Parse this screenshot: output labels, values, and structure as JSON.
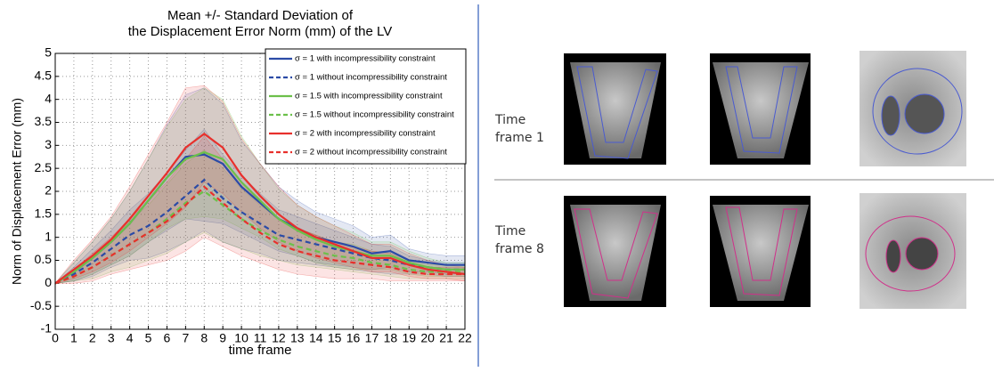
{
  "chart_data": {
    "type": "line",
    "title": [
      "Mean +/- Standard Deviation of",
      "the Displacement Error Norm (mm) of the LV"
    ],
    "x_label": "time frame",
    "y_label": "Norm of Displacement Error (mm)",
    "x": [
      0,
      1,
      2,
      3,
      4,
      5,
      6,
      7,
      8,
      9,
      10,
      11,
      12,
      13,
      14,
      15,
      16,
      17,
      18,
      19,
      20,
      21,
      22
    ],
    "xlim": [
      0,
      22
    ],
    "xticks": [
      0,
      1,
      2,
      3,
      4,
      5,
      6,
      7,
      8,
      9,
      10,
      11,
      12,
      13,
      14,
      15,
      16,
      17,
      18,
      19,
      20,
      21,
      22
    ],
    "ylim": [
      -1,
      5
    ],
    "yticks": [
      -1,
      -0.5,
      0,
      0.5,
      1,
      1.5,
      2,
      2.5,
      3,
      3.5,
      4,
      4.5,
      5
    ],
    "grid": true,
    "legend": "upper right",
    "series": [
      {
        "name": "σ = 1 with incompressibility constraint",
        "color": "#2b4ba6",
        "dashed": false,
        "values": [
          0,
          0.25,
          0.55,
          0.9,
          1.3,
          1.8,
          2.3,
          2.75,
          2.8,
          2.6,
          2.1,
          1.75,
          1.4,
          1.2,
          1.0,
          0.9,
          0.8,
          0.65,
          0.7,
          0.5,
          0.45,
          0.4,
          0.4
        ],
        "std": [
          0,
          0.2,
          0.35,
          0.5,
          0.7,
          0.9,
          1.15,
          1.35,
          1.45,
          1.3,
          1.0,
          0.85,
          0.7,
          0.6,
          0.55,
          0.5,
          0.45,
          0.35,
          0.35,
          0.25,
          0.2,
          0.2,
          0.2
        ]
      },
      {
        "name": "σ = 1 without incompressibility constraint",
        "color": "#2b4ba6",
        "dashed": true,
        "values": [
          0,
          0.2,
          0.45,
          0.75,
          1.05,
          1.25,
          1.55,
          1.9,
          2.25,
          1.85,
          1.55,
          1.3,
          1.05,
          0.95,
          0.85,
          0.75,
          0.65,
          0.55,
          0.5,
          0.4,
          0.35,
          0.3,
          0.3
        ],
        "std": [
          0,
          0.15,
          0.3,
          0.4,
          0.55,
          0.7,
          0.85,
          1.0,
          1.1,
          0.95,
          0.8,
          0.65,
          0.55,
          0.5,
          0.45,
          0.4,
          0.35,
          0.3,
          0.3,
          0.2,
          0.15,
          0.15,
          0.15
        ]
      },
      {
        "name": "σ = 1.5 with incompressibility constraint",
        "color": "#6cc04a",
        "dashed": false,
        "values": [
          0,
          0.25,
          0.55,
          0.9,
          1.3,
          1.8,
          2.3,
          2.7,
          2.85,
          2.7,
          2.2,
          1.8,
          1.4,
          1.15,
          0.95,
          0.8,
          0.7,
          0.6,
          0.6,
          0.45,
          0.35,
          0.3,
          0.3
        ],
        "std": [
          0,
          0.2,
          0.35,
          0.5,
          0.7,
          0.9,
          1.1,
          1.3,
          1.4,
          1.3,
          1.0,
          0.8,
          0.65,
          0.55,
          0.5,
          0.45,
          0.4,
          0.3,
          0.3,
          0.25,
          0.2,
          0.15,
          0.15
        ]
      },
      {
        "name": "σ = 1.5 without incompressibility constraint",
        "color": "#6cc04a",
        "dashed": true,
        "values": [
          0,
          0.15,
          0.35,
          0.6,
          0.85,
          1.1,
          1.4,
          1.75,
          2.0,
          1.7,
          1.4,
          1.15,
          0.95,
          0.8,
          0.7,
          0.6,
          0.55,
          0.45,
          0.4,
          0.3,
          0.25,
          0.25,
          0.25
        ],
        "std": [
          0,
          0.1,
          0.25,
          0.35,
          0.5,
          0.6,
          0.75,
          0.85,
          0.9,
          0.8,
          0.65,
          0.55,
          0.45,
          0.4,
          0.35,
          0.3,
          0.3,
          0.25,
          0.25,
          0.2,
          0.15,
          0.15,
          0.15
        ]
      },
      {
        "name": "σ = 2 with incompressibility constraint",
        "color": "#e8302c",
        "dashed": false,
        "values": [
          0,
          0.3,
          0.6,
          0.95,
          1.4,
          1.9,
          2.4,
          2.95,
          3.25,
          2.95,
          2.35,
          1.9,
          1.5,
          1.2,
          1.0,
          0.85,
          0.7,
          0.55,
          0.55,
          0.4,
          0.3,
          0.25,
          0.2
        ],
        "std": [
          0,
          0.2,
          0.35,
          0.5,
          0.7,
          0.9,
          1.1,
          1.3,
          1.05,
          1.0,
          0.8,
          0.7,
          0.6,
          0.5,
          0.45,
          0.4,
          0.35,
          0.3,
          0.3,
          0.25,
          0.2,
          0.15,
          0.15
        ]
      },
      {
        "name": "σ = 2 without incompressibility constraint",
        "color": "#e8302c",
        "dashed": true,
        "values": [
          0,
          0.15,
          0.35,
          0.6,
          0.85,
          1.1,
          1.35,
          1.7,
          2.1,
          1.75,
          1.4,
          1.1,
          0.85,
          0.7,
          0.6,
          0.5,
          0.45,
          0.4,
          0.35,
          0.25,
          0.2,
          0.2,
          0.2
        ],
        "std": [
          0,
          0.15,
          0.3,
          0.4,
          0.55,
          0.7,
          0.85,
          1.0,
          1.1,
          0.95,
          0.8,
          0.65,
          0.55,
          0.5,
          0.45,
          0.4,
          0.35,
          0.3,
          0.3,
          0.2,
          0.15,
          0.15,
          0.15
        ]
      }
    ]
  },
  "panel": {
    "rows": [
      {
        "label": "Time frame 1"
      },
      {
        "label": "Time frame 8"
      }
    ]
  }
}
